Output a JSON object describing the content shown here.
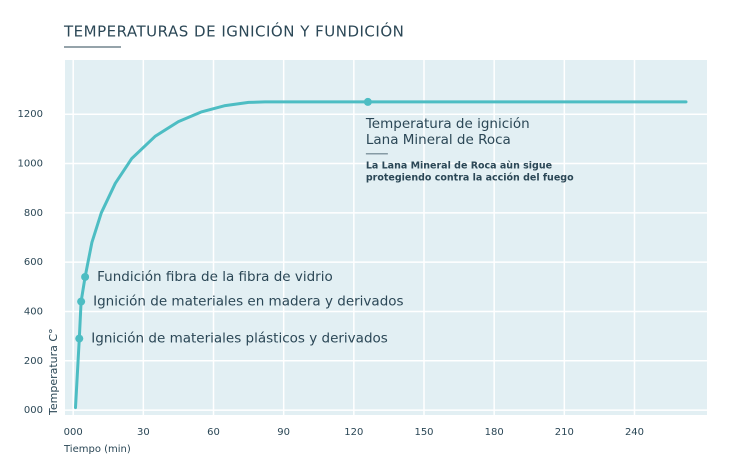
{
  "chart_data": {
    "type": "line",
    "title": "TEMPERATURAS DE IGNICIÓN Y FUNDICIÓN",
    "x_label": "Tiempo (min)",
    "y_label": "Temperatura C°",
    "series": [
      {
        "color": "#4dbdc3",
        "x": [
          1,
          2.6,
          3.4,
          5.1,
          8,
          12,
          18,
          25,
          35,
          45,
          55,
          65,
          75,
          82,
          262
        ],
        "values": [
          10,
          290,
          440,
          540,
          680,
          800,
          920,
          1020,
          1110,
          1170,
          1210,
          1235,
          1248,
          1250,
          1250
        ]
      }
    ],
    "points": [
      {
        "x": 2.6,
        "y": 290,
        "label": "Ignición de materiales plásticos y derivados"
      },
      {
        "x": 3.4,
        "y": 440,
        "label": "Ignición de materiales en madera y derivados"
      },
      {
        "x": 5.1,
        "y": 540,
        "label": "Fundición fibra de la fibra de vidrio"
      },
      {
        "x": 126,
        "y": 1250,
        "label": [
          "Temperatura de ignición",
          "Lana Mineral de Roca"
        ],
        "note": [
          "La Lana Mineral de Roca aùn sigue",
          "protegiendo contra la acción del fuego"
        ]
      }
    ],
    "xlim": [
      -3.5,
      271
    ],
    "ylim": [
      -20,
      1420
    ],
    "xticks": [
      {
        "value": 0,
        "label": "000"
      },
      30,
      60,
      90,
      120,
      150,
      180,
      210,
      240
    ],
    "yticks": [
      {
        "value": 0,
        "label": "000"
      },
      200,
      400,
      600,
      800,
      1000,
      1200
    ],
    "grid": true,
    "background": "#e2eff3"
  }
}
